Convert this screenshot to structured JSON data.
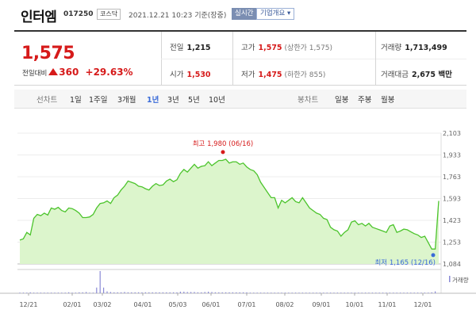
{
  "header": {
    "name": "인터엠",
    "code": "017250",
    "market": "코스닥",
    "datetime": "2021.12.21 10:23 기준(장중)",
    "realtime_btn": "실시간",
    "company_btn": "기업개요 ▾"
  },
  "quote": {
    "price": "1,575",
    "change_label": "전일대비",
    "change": "360",
    "change_pct": "+29.63%",
    "prev_close_label": "전일",
    "prev_close": "1,215",
    "open_label": "시가",
    "open": "1,530",
    "high_label": "고가",
    "high": "1,575",
    "upper_limit": "(상한가 1,575)",
    "low_label": "저가",
    "low": "1,475",
    "lower_limit": "(하한가 855)",
    "volume_label": "거래량",
    "volume": "1,713,499",
    "value_label": "거래대금",
    "value": "2,675 백만"
  },
  "tabs": {
    "line_label": "선차트",
    "periods": [
      "1일",
      "1주일",
      "3개월",
      "1년",
      "3년",
      "5년",
      "10년"
    ],
    "active_period": "1년",
    "candle_label": "봉차트",
    "candles": [
      "일봉",
      "주봉",
      "월봉"
    ]
  },
  "colors": {
    "up": "#d61a1a",
    "accent": "#3a6bd8",
    "line": "#4cc42c",
    "fill": "#dcf5cc"
  },
  "chart_data": {
    "type": "area",
    "y_ticks": [
      "2,103",
      "1,933",
      "1,763",
      "1,593",
      "1,423",
      "1,253",
      "1,084"
    ],
    "x_ticks": [
      "12/21",
      "02/01",
      "03/02",
      "04/01",
      "05/03",
      "06/01",
      "07/01",
      "08/02",
      "09/01",
      "10/01",
      "11/01",
      "12/01"
    ],
    "high_annotation": "최고 1,980 (06/16)",
    "low_annotation": "최저 1,165 (12/16)",
    "volume_label": "거래량",
    "ylim": [
      1084,
      2103
    ],
    "grid": true,
    "series": [
      {
        "values": [
          1270,
          1280,
          1330,
          1310,
          1440,
          1470,
          1460,
          1480,
          1465,
          1520,
          1510,
          1525,
          1500,
          1490,
          1520,
          1515,
          1500,
          1480,
          1445,
          1445,
          1450,
          1470,
          1520,
          1555,
          1560,
          1575,
          1555,
          1600,
          1620,
          1660,
          1690,
          1730,
          1720,
          1710,
          1690,
          1685,
          1670,
          1660,
          1690,
          1710,
          1695,
          1700,
          1730,
          1745,
          1725,
          1740,
          1790,
          1820,
          1800,
          1830,
          1860,
          1830,
          1845,
          1850,
          1880,
          1850,
          1870,
          1890,
          1890,
          1900,
          1870,
          1880,
          1880,
          1860,
          1870,
          1840,
          1820,
          1810,
          1780,
          1720,
          1680,
          1640,
          1600,
          1600,
          1520,
          1580,
          1560,
          1580,
          1600,
          1570,
          1560,
          1600,
          1560,
          1520,
          1500,
          1480,
          1470,
          1440,
          1430,
          1370,
          1350,
          1340,
          1300,
          1330,
          1350,
          1410,
          1420,
          1390,
          1400,
          1380,
          1400,
          1370,
          1360,
          1350,
          1340,
          1330,
          1380,
          1390,
          1330,
          1340,
          1355,
          1350,
          1335,
          1320,
          1310,
          1290,
          1300,
          1250,
          1200,
          1200,
          1575
        ]
      }
    ],
    "volume": [
      2,
      2,
      2,
      3,
      2,
      2,
      2,
      2,
      2,
      2,
      2,
      2,
      2,
      2,
      3,
      2,
      2,
      3,
      3,
      4,
      2,
      2,
      18,
      70,
      18,
      6,
      4,
      3,
      3,
      3,
      4,
      3,
      3,
      3,
      3,
      3,
      3,
      3,
      3,
      3,
      3,
      3,
      3,
      3,
      3,
      3,
      5,
      5,
      4,
      4,
      4,
      3,
      3,
      4,
      5,
      4,
      3,
      3,
      3,
      3,
      3,
      3,
      3,
      3,
      3,
      3,
      2,
      2,
      2,
      2,
      2,
      2,
      2,
      2,
      2,
      2,
      2,
      2,
      2,
      2,
      2,
      2,
      2,
      2,
      2,
      2,
      2,
      2,
      2,
      2,
      2,
      2,
      2,
      2,
      2,
      2,
      2,
      2,
      2,
      2,
      2,
      2,
      2,
      2,
      2,
      2,
      2,
      2,
      2,
      2,
      2,
      2,
      2,
      2,
      2,
      2,
      2,
      2,
      3,
      6
    ]
  }
}
